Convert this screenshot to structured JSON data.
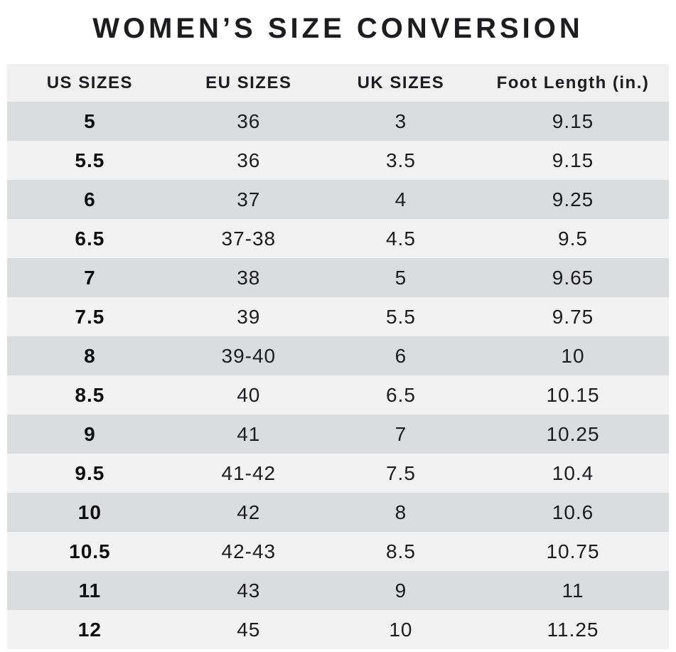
{
  "chart_data": {
    "type": "table",
    "title": "WOMEN’S SIZE CONVERSION",
    "columns": [
      "US SIZES",
      "EU SIZES",
      "UK SIZES",
      "Foot Length (in.)"
    ],
    "rows": [
      [
        "5",
        "36",
        "3",
        "9.15"
      ],
      [
        "5.5",
        "36",
        "3.5",
        "9.15"
      ],
      [
        "6",
        "37",
        "4",
        "9.25"
      ],
      [
        "6.5",
        "37-38",
        "4.5",
        "9.5"
      ],
      [
        "7",
        "38",
        "5",
        "9.65"
      ],
      [
        "7.5",
        "39",
        "5.5",
        "9.75"
      ],
      [
        "8",
        "39-40",
        "6",
        "10"
      ],
      [
        "8.5",
        "40",
        "6.5",
        "10.15"
      ],
      [
        "9",
        "41",
        "7",
        "10.25"
      ],
      [
        "9.5",
        "41-42",
        "7.5",
        "10.4"
      ],
      [
        "10",
        "42",
        "8",
        "10.6"
      ],
      [
        "10.5",
        "42-43",
        "8.5",
        "10.75"
      ],
      [
        "11",
        "43",
        "9",
        "11"
      ],
      [
        "12",
        "45",
        "10",
        "11.25"
      ]
    ],
    "layout": {
      "stripe_pattern": "odd-rows-dark",
      "first_column_bold": true
    }
  },
  "colors": {
    "page_bg": "#ffffff",
    "header_bg": "#f0f0f1",
    "row_dark": "#dbdcde",
    "row_light": "#f2f2f2",
    "text": "#1d1d1f"
  }
}
